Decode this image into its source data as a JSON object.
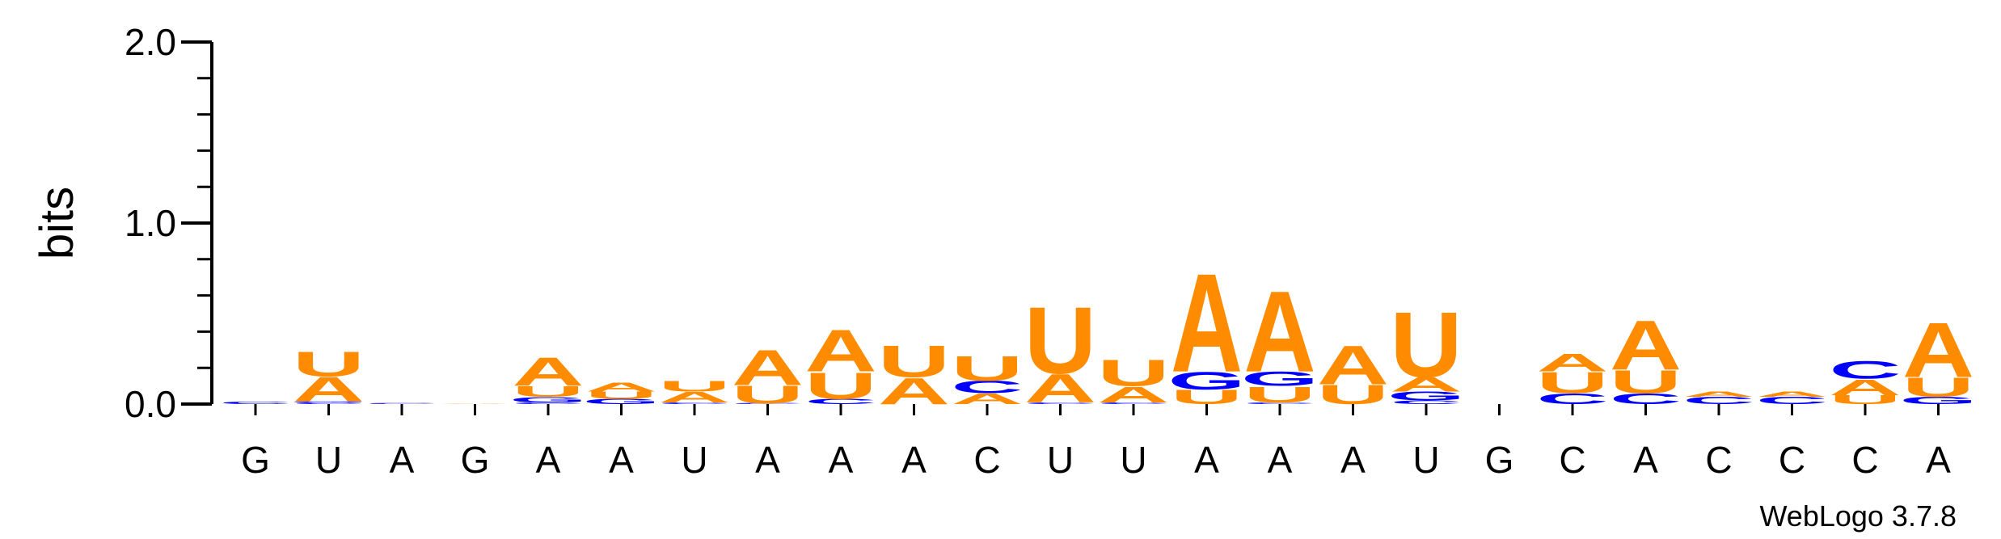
{
  "chart_data": {
    "type": "sequence-logo",
    "ylabel": "bits",
    "ylim": [
      0,
      2.0
    ],
    "y_ticks": [
      "0.0",
      "1.0",
      "2.0"
    ],
    "credit": "WebLogo 3.7.8",
    "colors": {
      "A": "#ff8c00",
      "U": "#ff8c00",
      "C": "#0000ff",
      "G": "#0000ff"
    },
    "positions": [
      {
        "label": "G",
        "stack": [
          [
            "C",
            0.015
          ]
        ]
      },
      {
        "label": "U",
        "stack": [
          [
            "C",
            0.01
          ],
          [
            "G",
            0.005
          ],
          [
            "A",
            0.14
          ],
          [
            "U",
            0.14
          ]
        ]
      },
      {
        "label": "A",
        "stack": [
          [
            "C",
            0.005
          ],
          [
            "A",
            0.003
          ]
        ]
      },
      {
        "label": "G",
        "stack": [
          [
            "A",
            0.003
          ]
        ]
      },
      {
        "label": "A",
        "stack": [
          [
            "C",
            0.01
          ],
          [
            "G",
            0.03
          ],
          [
            "U",
            0.06
          ],
          [
            "A",
            0.16
          ]
        ]
      },
      {
        "label": "A",
        "stack": [
          [
            "G",
            0.03
          ],
          [
            "U",
            0.04
          ],
          [
            "A",
            0.05
          ]
        ]
      },
      {
        "label": "U",
        "stack": [
          [
            "C",
            0.01
          ],
          [
            "A",
            0.06
          ],
          [
            "U",
            0.06
          ]
        ]
      },
      {
        "label": "A",
        "stack": [
          [
            "C",
            0.005
          ],
          [
            "U",
            0.1
          ],
          [
            "A",
            0.2
          ]
        ]
      },
      {
        "label": "A",
        "stack": [
          [
            "C",
            0.03
          ],
          [
            "U",
            0.15
          ],
          [
            "A",
            0.24
          ]
        ]
      },
      {
        "label": "A",
        "stack": [
          [
            "A",
            0.15
          ],
          [
            "U",
            0.18
          ]
        ]
      },
      {
        "label": "C",
        "stack": [
          [
            "A",
            0.06
          ],
          [
            "C",
            0.07
          ],
          [
            "U",
            0.14
          ]
        ]
      },
      {
        "label": "U",
        "stack": [
          [
            "C",
            0.01
          ],
          [
            "A",
            0.16
          ],
          [
            "U",
            0.38
          ]
        ]
      },
      {
        "label": "U",
        "stack": [
          [
            "C",
            0.01
          ],
          [
            "A",
            0.09
          ],
          [
            "U",
            0.15
          ]
        ]
      },
      {
        "label": "A",
        "stack": [
          [
            "U",
            0.08
          ],
          [
            "G",
            0.1
          ],
          [
            "A",
            0.56
          ]
        ]
      },
      {
        "label": "A",
        "stack": [
          [
            "C",
            0.01
          ],
          [
            "U",
            0.09
          ],
          [
            "G",
            0.08
          ],
          [
            "A",
            0.46
          ]
        ]
      },
      {
        "label": "A",
        "stack": [
          [
            "U",
            0.11
          ],
          [
            "A",
            0.22
          ]
        ]
      },
      {
        "label": "U",
        "stack": [
          [
            "C",
            0.02
          ],
          [
            "G",
            0.05
          ],
          [
            "A",
            0.08
          ],
          [
            "U",
            0.37
          ]
        ]
      },
      {
        "label": "G",
        "stack": []
      },
      {
        "label": "C",
        "stack": [
          [
            "C",
            0.06
          ],
          [
            "U",
            0.12
          ],
          [
            "A",
            0.1
          ]
        ]
      },
      {
        "label": "A",
        "stack": [
          [
            "C",
            0.06
          ],
          [
            "U",
            0.13
          ],
          [
            "A",
            0.28
          ]
        ]
      },
      {
        "label": "C",
        "stack": [
          [
            "C",
            0.04
          ],
          [
            "A",
            0.03
          ]
        ]
      },
      {
        "label": "C",
        "stack": [
          [
            "C",
            0.04
          ],
          [
            "A",
            0.03
          ]
        ]
      },
      {
        "label": "C",
        "stack": [
          [
            "U",
            0.05
          ],
          [
            "A",
            0.09
          ],
          [
            "C",
            0.1
          ]
        ]
      },
      {
        "label": "A",
        "stack": [
          [
            "G",
            0.04
          ],
          [
            "U",
            0.11
          ],
          [
            "A",
            0.31
          ]
        ]
      }
    ]
  }
}
